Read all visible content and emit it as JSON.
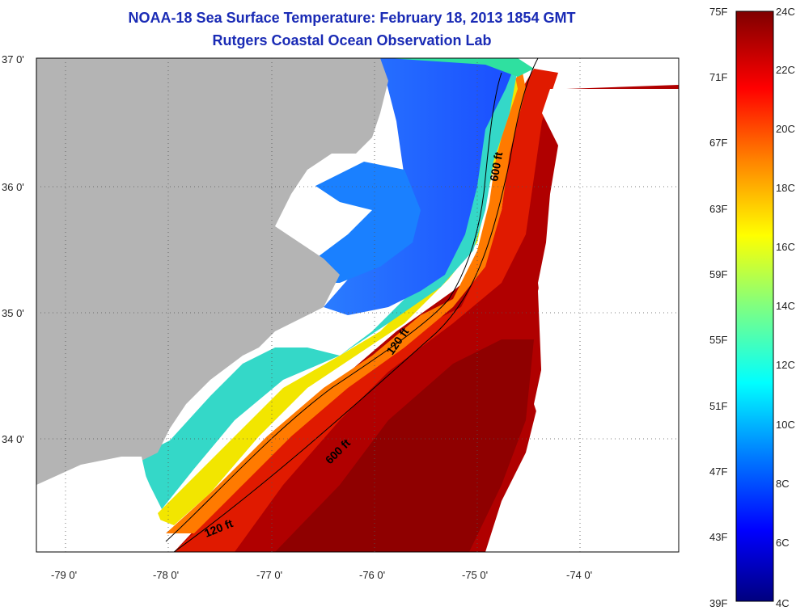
{
  "title": {
    "line1": "NOAA-18 Sea Surface Temperature:  February 18, 2013 1854 GMT",
    "line2": "Rutgers Coastal Ocean Observation Lab"
  },
  "map": {
    "lat_labels": [
      "37 0'",
      "36 0'",
      "35 0'",
      "34 0'"
    ],
    "lon_labels": [
      "-79 0'",
      "-78 0'",
      "-77 0'",
      "-76 0'",
      "-75 0'",
      "-74 0'"
    ],
    "contours": [
      {
        "label": "600 ft"
      },
      {
        "label": "120 ft"
      },
      {
        "label": "600 ft"
      },
      {
        "label": "120 ft"
      }
    ],
    "colors": {
      "land": "#b4b4b4",
      "cloud": "#ffffff",
      "contour": "#000000"
    }
  },
  "colorbar": {
    "fahrenheit_labels": [
      "75F",
      "71F",
      "67F",
      "63F",
      "59F",
      "55F",
      "51F",
      "47F",
      "43F",
      "39F"
    ],
    "celsius_labels": [
      "24C",
      "22C",
      "20C",
      "18C",
      "16C",
      "14C",
      "12C",
      "10C",
      "8C",
      "6C",
      "4C"
    ],
    "colors": [
      "#00007f",
      "#0000ff",
      "#0080ff",
      "#00ffff",
      "#80ff80",
      "#ffff00",
      "#ff8000",
      "#ff0000",
      "#7f0000"
    ]
  }
}
